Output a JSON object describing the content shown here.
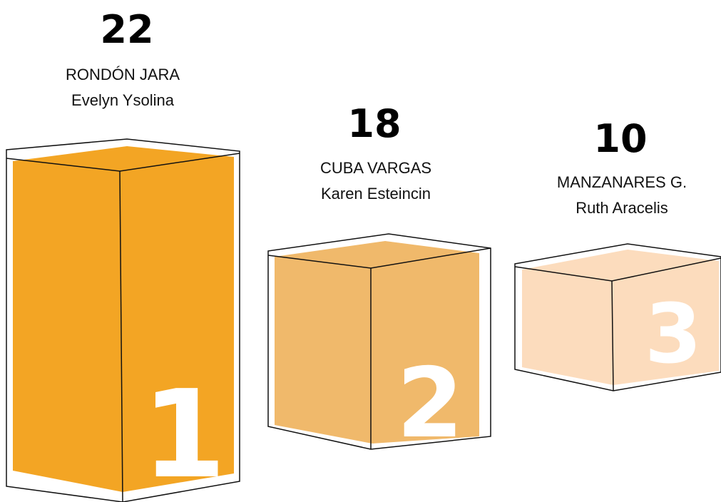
{
  "podium": [
    {
      "score": 22,
      "surname": "RONDÓN JARA",
      "given_name": "Evelyn Ysolina",
      "rank": 1
    },
    {
      "score": 18,
      "surname": "CUBA VARGAS",
      "given_name": "Karen Esteincin",
      "rank": 2
    },
    {
      "score": 10,
      "surname": "MANZANARES G.",
      "given_name": "Ruth Aracelis",
      "rank": 3
    }
  ]
}
